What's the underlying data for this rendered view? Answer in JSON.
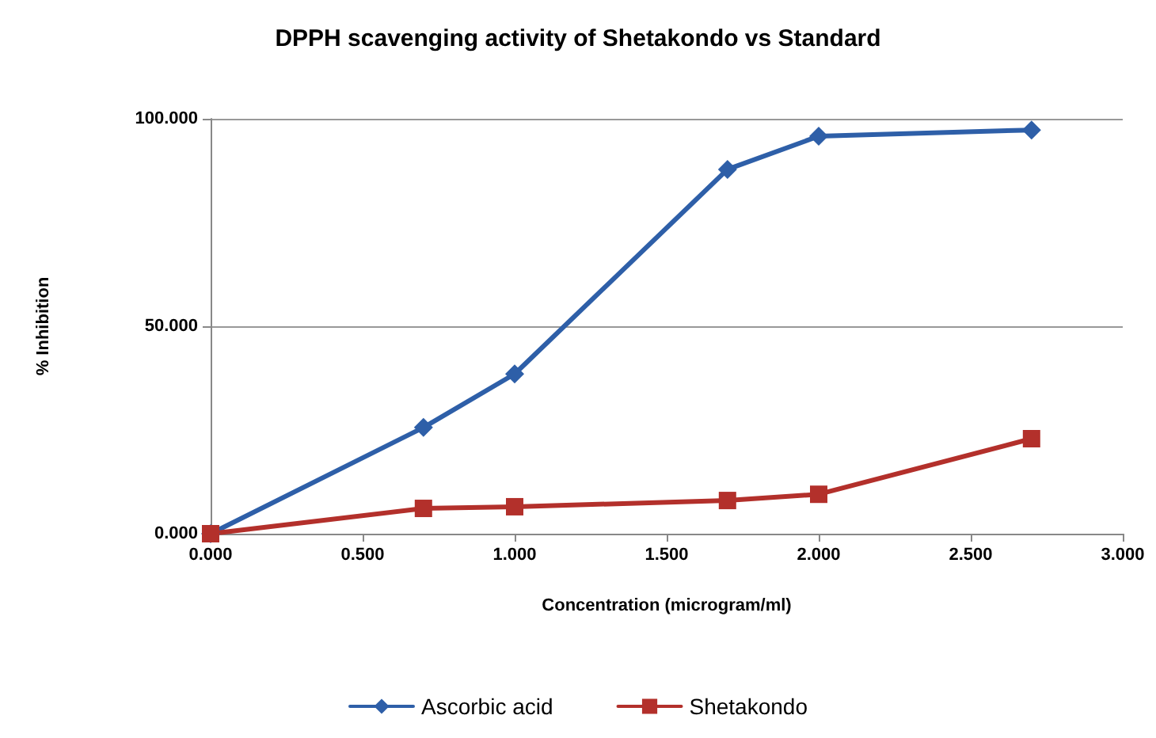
{
  "chart_data": {
    "type": "line",
    "title": "DPPH scavenging activity of Shetakondo vs Standard",
    "xlabel": "Concentration (microgram/ml)",
    "ylabel": "% Inhibition",
    "x": [
      0,
      0.7,
      1.0,
      1.7,
      2.0,
      2.7
    ],
    "series": [
      {
        "name": "Ascorbic acid",
        "color": "#2e5fa8",
        "marker": "diamond",
        "values": [
          0,
          25.6,
          38.5,
          87.8,
          95.8,
          97.3
        ]
      },
      {
        "name": "Shetakondo",
        "color": "#b3302b",
        "marker": "square",
        "values": [
          0,
          6.1,
          6.5,
          8.0,
          9.5,
          22.9
        ]
      }
    ],
    "xlim": [
      0,
      3
    ],
    "xticks": [
      {
        "value": 0,
        "label": "0.000"
      },
      {
        "value": 0.5,
        "label": "0.500"
      },
      {
        "value": 1,
        "label": "1.000"
      },
      {
        "value": 1.5,
        "label": "1.500"
      },
      {
        "value": 2,
        "label": "2.000"
      },
      {
        "value": 2.5,
        "label": "2.500"
      },
      {
        "value": 3,
        "label": "3.000"
      }
    ],
    "ylim": [
      0,
      100
    ],
    "yticks": [
      {
        "value": 0,
        "label": "0.000"
      },
      {
        "value": 50,
        "label": "50.000"
      },
      {
        "value": 100,
        "label": "100.000"
      }
    ],
    "grid": "y",
    "legend": "bottom",
    "line_style": "solid"
  }
}
